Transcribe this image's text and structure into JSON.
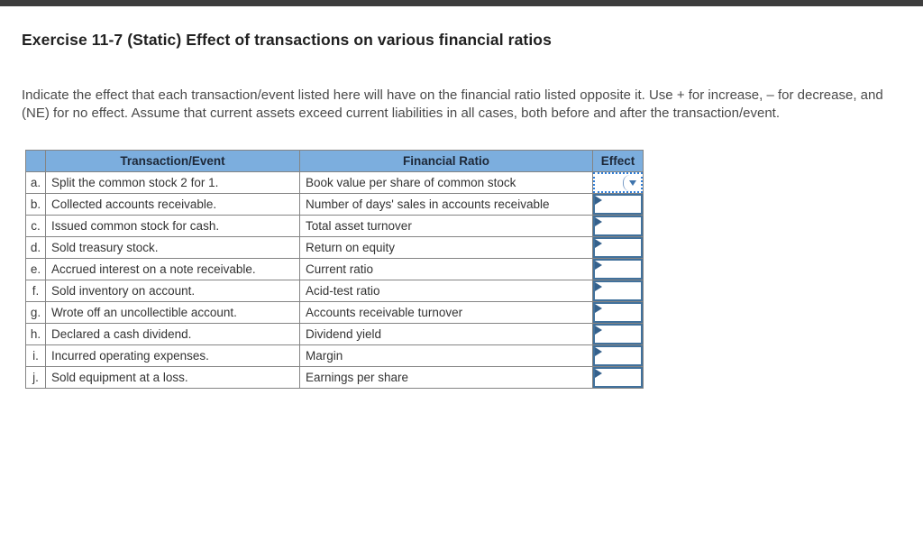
{
  "title": "Exercise 11-7 (Static) Effect of transactions on various financial ratios",
  "instructions": "Indicate the effect that each transaction/event listed here will have on the financial ratio listed opposite it. Use + for increase, – for decrease, and (NE) for no effect. Assume that current assets exceed current liabilities in all cases, both before and after the transaction/event.",
  "colors": {
    "top_bar": "#3d3d3d",
    "header_blue": "#7caede",
    "effect_border_blue": "#41719c",
    "focused_dotted_blue": "#2f7ed8",
    "grid_gray": "#848484"
  },
  "table": {
    "headers": {
      "letter": "",
      "transaction": "Transaction/Event",
      "ratio": "Financial Ratio",
      "effect": "Effect"
    },
    "rows": [
      {
        "letter": "a.",
        "transaction": "Split the common stock 2 for 1.",
        "ratio": "Book value per share of common stock",
        "effect_value": ""
      },
      {
        "letter": "b.",
        "transaction": "Collected accounts receivable.",
        "ratio": "Number of days' sales in accounts receivable",
        "effect_value": ""
      },
      {
        "letter": "c.",
        "transaction": "Issued common stock for cash.",
        "ratio": "Total asset turnover",
        "effect_value": ""
      },
      {
        "letter": "d.",
        "transaction": "Sold treasury stock.",
        "ratio": "Return on equity",
        "effect_value": ""
      },
      {
        "letter": "e.",
        "transaction": "Accrued interest on a note receivable.",
        "ratio": "Current ratio",
        "effect_value": ""
      },
      {
        "letter": "f.",
        "transaction": "Sold inventory on account.",
        "ratio": "Acid-test ratio",
        "effect_value": ""
      },
      {
        "letter": "g.",
        "transaction": "Wrote off an uncollectible account.",
        "ratio": "Accounts receivable turnover",
        "effect_value": ""
      },
      {
        "letter": "h.",
        "transaction": "Declared a cash dividend.",
        "ratio": "Dividend yield",
        "effect_value": ""
      },
      {
        "letter": "i.",
        "transaction": "Incurred operating expenses.",
        "ratio": "Margin",
        "effect_value": ""
      },
      {
        "letter": "j.",
        "transaction": "Sold equipment at a loss.",
        "ratio": "Earnings per share",
        "effect_value": ""
      }
    ]
  }
}
